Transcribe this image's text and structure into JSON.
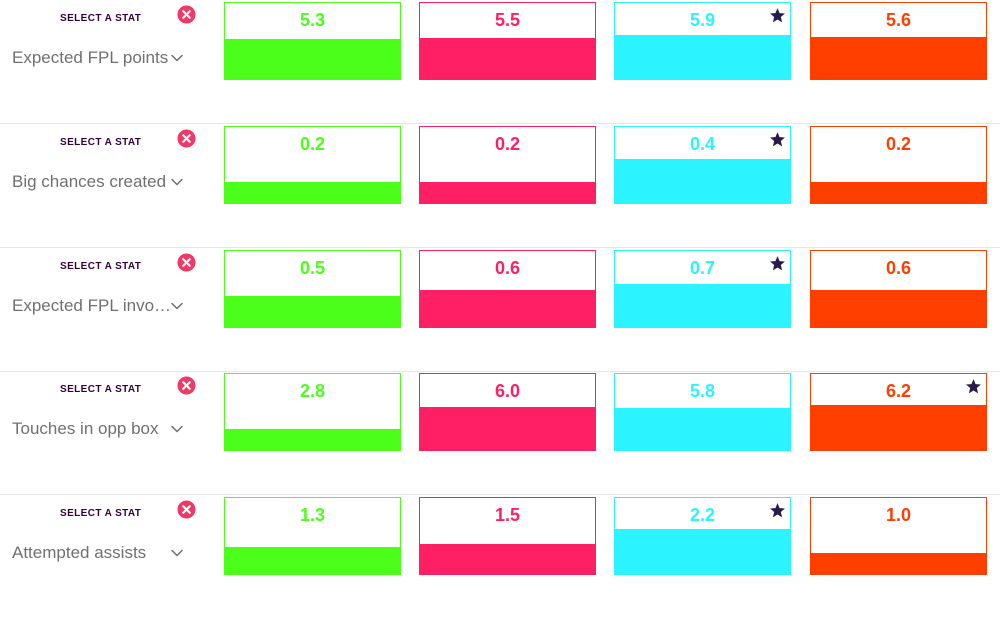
{
  "colors": {
    "player_1": "#4bff1a",
    "player_2": "#ff1f64",
    "player_3": "#2bf3ff",
    "player_4": "#ff3f00",
    "remove_icon": "#ee3a67",
    "star_icon": "#2a1a4a",
    "caption": "#37003c"
  },
  "select_caption": "SELECT A STAT",
  "icons": {
    "remove": "close-circle-icon",
    "dropdown": "chevron-down-icon",
    "best": "star-icon"
  },
  "rows": [
    {
      "stat": "Expected FPL points",
      "values": [
        "5.3",
        "5.5",
        "5.9",
        "5.6"
      ],
      "fill_fraction": [
        0.52,
        0.54,
        0.58,
        0.55
      ],
      "best_index": 2
    },
    {
      "stat": "Big chances created",
      "values": [
        "0.2",
        "0.2",
        "0.4",
        "0.2"
      ],
      "fill_fraction": [
        0.28,
        0.28,
        0.58,
        0.28
      ],
      "best_index": 2
    },
    {
      "stat": "Expected FPL invo…",
      "values": [
        "0.5",
        "0.6",
        "0.7",
        "0.6"
      ],
      "fill_fraction": [
        0.41,
        0.49,
        0.57,
        0.49
      ],
      "best_index": 2
    },
    {
      "stat": "Touches in opp box",
      "values": [
        "2.8",
        "6.0",
        "5.8",
        "6.2"
      ],
      "fill_fraction": [
        0.27,
        0.57,
        0.55,
        0.59
      ],
      "best_index": 3
    },
    {
      "stat": "Attempted assists",
      "values": [
        "1.3",
        "1.5",
        "2.2",
        "1.0"
      ],
      "fill_fraction": [
        0.35,
        0.4,
        0.59,
        0.27
      ],
      "best_index": 2
    }
  ]
}
